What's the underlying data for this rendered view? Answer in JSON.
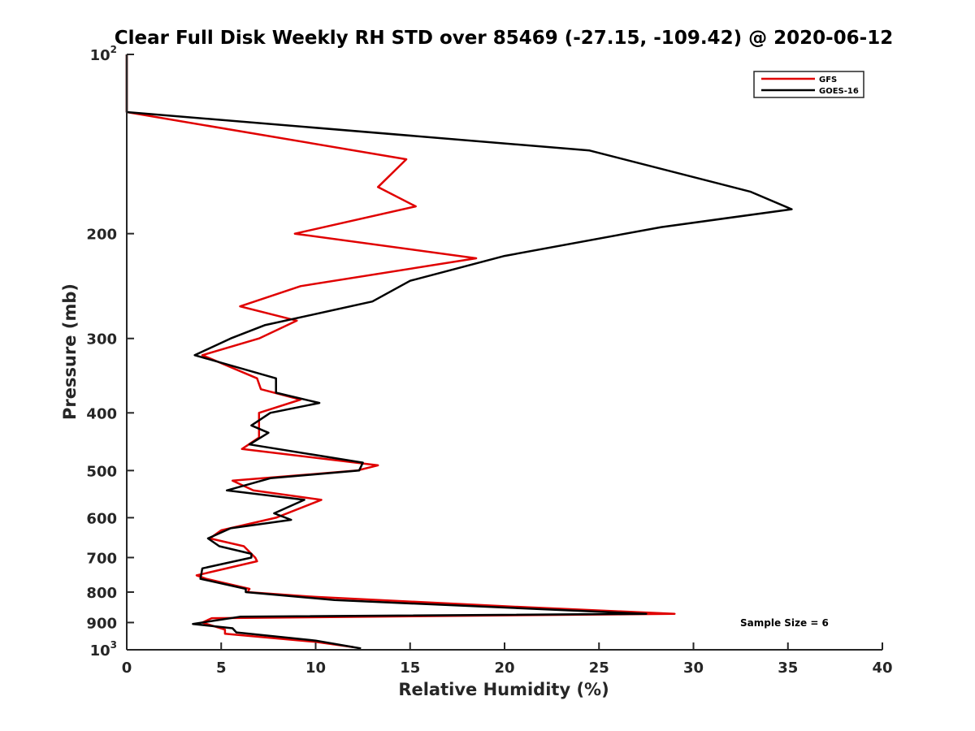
{
  "chart_data": {
    "type": "line",
    "title": "Clear Full Disk Weekly RH STD over 85469 (-27.15, -109.42) @ 2020-06-12",
    "xlabel": "Relative Humidity (%)",
    "ylabel": "Pressure (mb)",
    "xlim": [
      0,
      40
    ],
    "ylim": [
      100,
      1000
    ],
    "y_scale": "log",
    "y_reversed": true,
    "grid": false,
    "legend_position": "top-right",
    "x_ticks": [
      0,
      5,
      10,
      15,
      20,
      25,
      30,
      35,
      40
    ],
    "y_ticks": [
      {
        "value": 100,
        "label": "10",
        "sup": "2"
      },
      {
        "value": 200,
        "label": "200",
        "sup": ""
      },
      {
        "value": 300,
        "label": "300",
        "sup": ""
      },
      {
        "value": 400,
        "label": "400",
        "sup": ""
      },
      {
        "value": 500,
        "label": "500",
        "sup": ""
      },
      {
        "value": 600,
        "label": "600",
        "sup": ""
      },
      {
        "value": 700,
        "label": "700",
        "sup": ""
      },
      {
        "value": 800,
        "label": "800",
        "sup": ""
      },
      {
        "value": 900,
        "label": "900",
        "sup": ""
      },
      {
        "value": 1000,
        "label": "10",
        "sup": "3"
      }
    ],
    "series": [
      {
        "name": "GFS",
        "color": "#e00000",
        "points": [
          [
            0,
            100
          ],
          [
            0,
            125
          ],
          [
            14.8,
            150
          ],
          [
            13.3,
            167
          ],
          [
            15.3,
            180
          ],
          [
            8.9,
            200
          ],
          [
            18.5,
            220
          ],
          [
            9.2,
            245
          ],
          [
            6.0,
            265
          ],
          [
            9.0,
            280
          ],
          [
            7.0,
            300
          ],
          [
            4.0,
            320
          ],
          [
            6.9,
            350
          ],
          [
            7.1,
            365
          ],
          [
            9.2,
            380
          ],
          [
            7.0,
            400
          ],
          [
            7.0,
            420
          ],
          [
            7.0,
            440
          ],
          [
            6.1,
            460
          ],
          [
            13.3,
            490
          ],
          [
            12.2,
            500
          ],
          [
            5.6,
            520
          ],
          [
            6.7,
            540
          ],
          [
            10.3,
            560
          ],
          [
            7.9,
            600
          ],
          [
            5.0,
            630
          ],
          [
            4.4,
            650
          ],
          [
            6.2,
            670
          ],
          [
            6.8,
            700
          ],
          [
            6.9,
            710
          ],
          [
            3.7,
            750
          ],
          [
            4.2,
            760
          ],
          [
            6.5,
            790
          ],
          [
            6.4,
            800
          ],
          [
            10.0,
            815
          ],
          [
            20.0,
            845
          ],
          [
            29.0,
            870
          ],
          [
            4.5,
            885
          ],
          [
            4.0,
            900
          ],
          [
            5.2,
            925
          ],
          [
            5.2,
            940
          ],
          [
            10.0,
            970
          ],
          [
            12.0,
            990
          ]
        ]
      },
      {
        "name": "GOES-16",
        "color": "#000000",
        "points": [
          [
            0,
            100
          ],
          [
            0,
            125
          ],
          [
            24.5,
            145
          ],
          [
            33.0,
            170
          ],
          [
            35.2,
            182
          ],
          [
            28.3,
            195
          ],
          [
            20.0,
            218
          ],
          [
            15.0,
            240
          ],
          [
            13.0,
            260
          ],
          [
            7.3,
            285
          ],
          [
            5.5,
            300
          ],
          [
            3.6,
            320
          ],
          [
            7.9,
            350
          ],
          [
            7.9,
            370
          ],
          [
            10.2,
            385
          ],
          [
            7.6,
            400
          ],
          [
            6.6,
            420
          ],
          [
            7.5,
            432
          ],
          [
            6.5,
            452
          ],
          [
            12.5,
            485
          ],
          [
            12.3,
            500
          ],
          [
            7.6,
            515
          ],
          [
            5.3,
            540
          ],
          [
            9.4,
            560
          ],
          [
            7.8,
            590
          ],
          [
            8.7,
            605
          ],
          [
            5.5,
            625
          ],
          [
            4.3,
            650
          ],
          [
            4.9,
            670
          ],
          [
            6.6,
            690
          ],
          [
            6.6,
            700
          ],
          [
            4.0,
            730
          ],
          [
            3.9,
            760
          ],
          [
            6.3,
            790
          ],
          [
            6.3,
            800
          ],
          [
            11.0,
            825
          ],
          [
            27.5,
            870
          ],
          [
            6.0,
            880
          ],
          [
            3.5,
            905
          ],
          [
            5.6,
            920
          ],
          [
            5.8,
            935
          ],
          [
            10.0,
            965
          ],
          [
            12.4,
            995
          ]
        ]
      }
    ],
    "annotations": [
      {
        "text": "Sample Size = 6"
      }
    ]
  }
}
